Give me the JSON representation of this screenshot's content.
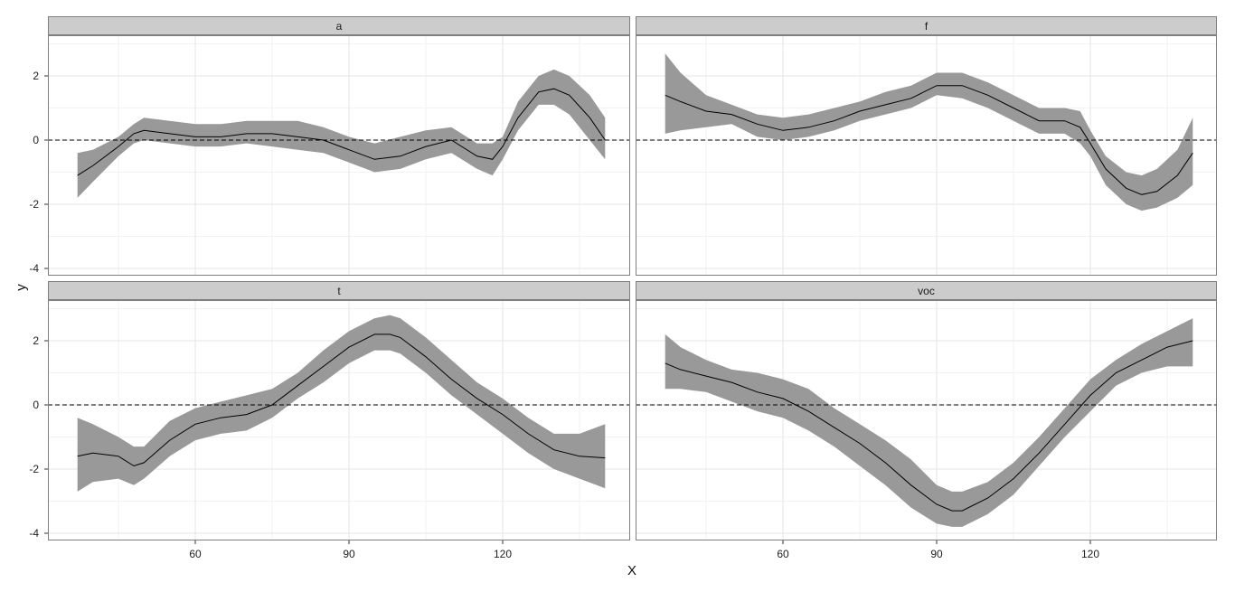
{
  "chart_data": {
    "type": "line",
    "layout": "facet-grid-2x2",
    "xlabel": "X",
    "ylabel": "y",
    "xticks": [
      60,
      90,
      120
    ],
    "yticks": [
      -4,
      -2,
      0,
      2
    ],
    "xlim": [
      32,
      142
    ],
    "ylim": [
      -4.2,
      3.1
    ],
    "reference_line": {
      "y": 0,
      "style": "dashed"
    },
    "grid": true,
    "colors": {
      "panel_bg": "#ffffff",
      "strip_bg": "#cccccc",
      "ribbon": "#999999",
      "line": "#000000",
      "grid_major": "#e5e5e5",
      "grid_minor": "#f2f2f2"
    },
    "facets": [
      {
        "label": "a",
        "x": [
          37,
          40,
          45,
          48,
          50,
          55,
          60,
          65,
          70,
          75,
          80,
          85,
          90,
          95,
          100,
          105,
          110,
          115,
          118,
          120,
          123,
          127,
          130,
          133,
          137,
          140
        ],
        "y": [
          -1.1,
          -0.8,
          -0.2,
          0.2,
          0.3,
          0.2,
          0.1,
          0.1,
          0.2,
          0.2,
          0.1,
          0.0,
          -0.3,
          -0.6,
          -0.5,
          -0.2,
          0.0,
          -0.5,
          -0.6,
          -0.2,
          0.7,
          1.5,
          1.6,
          1.4,
          0.7,
          0.0
        ],
        "lower": [
          -1.8,
          -1.3,
          -0.5,
          -0.1,
          0.0,
          -0.1,
          -0.2,
          -0.2,
          -0.1,
          -0.2,
          -0.3,
          -0.4,
          -0.7,
          -1.0,
          -0.9,
          -0.6,
          -0.4,
          -0.9,
          -1.1,
          -0.6,
          0.3,
          1.1,
          1.1,
          0.8,
          0.0,
          -0.6
        ],
        "upper": [
          -0.4,
          -0.3,
          0.1,
          0.5,
          0.7,
          0.6,
          0.5,
          0.5,
          0.6,
          0.6,
          0.6,
          0.4,
          0.1,
          -0.1,
          0.1,
          0.3,
          0.4,
          -0.1,
          -0.1,
          0.1,
          1.2,
          2.0,
          2.2,
          2.0,
          1.4,
          0.7
        ]
      },
      {
        "label": "f",
        "x": [
          37,
          40,
          45,
          50,
          55,
          60,
          65,
          70,
          75,
          80,
          85,
          90,
          95,
          100,
          105,
          110,
          115,
          118,
          120,
          123,
          127,
          130,
          133,
          137,
          140
        ],
        "y": [
          1.4,
          1.2,
          0.9,
          0.8,
          0.5,
          0.3,
          0.4,
          0.6,
          0.9,
          1.1,
          1.3,
          1.7,
          1.7,
          1.4,
          1.0,
          0.6,
          0.6,
          0.4,
          -0.1,
          -0.9,
          -1.5,
          -1.7,
          -1.6,
          -1.1,
          -0.4
        ],
        "lower": [
          0.2,
          0.3,
          0.4,
          0.5,
          0.1,
          0.0,
          0.1,
          0.3,
          0.6,
          0.8,
          1.0,
          1.4,
          1.3,
          1.0,
          0.6,
          0.2,
          0.2,
          -0.1,
          -0.5,
          -1.4,
          -2.0,
          -2.2,
          -2.1,
          -1.8,
          -1.4
        ],
        "upper": [
          2.7,
          2.1,
          1.4,
          1.1,
          0.8,
          0.7,
          0.8,
          1.0,
          1.2,
          1.5,
          1.7,
          2.1,
          2.1,
          1.8,
          1.4,
          1.0,
          1.0,
          0.9,
          0.3,
          -0.5,
          -1.0,
          -1.1,
          -0.9,
          -0.3,
          0.7
        ]
      },
      {
        "label": "t",
        "x": [
          37,
          40,
          45,
          48,
          50,
          55,
          60,
          65,
          70,
          75,
          80,
          85,
          90,
          95,
          98,
          100,
          105,
          110,
          115,
          120,
          125,
          130,
          135,
          140
        ],
        "y": [
          -1.6,
          -1.5,
          -1.6,
          -1.9,
          -1.8,
          -1.1,
          -0.6,
          -0.4,
          -0.3,
          0.0,
          0.6,
          1.2,
          1.8,
          2.2,
          2.2,
          2.1,
          1.5,
          0.8,
          0.2,
          -0.3,
          -0.9,
          -1.4,
          -1.6,
          -1.65
        ],
        "lower": [
          -2.7,
          -2.4,
          -2.3,
          -2.5,
          -2.3,
          -1.6,
          -1.1,
          -0.9,
          -0.8,
          -0.4,
          0.2,
          0.7,
          1.3,
          1.7,
          1.7,
          1.6,
          1.0,
          0.3,
          -0.3,
          -0.9,
          -1.5,
          -2.0,
          -2.3,
          -2.6
        ],
        "upper": [
          -0.4,
          -0.6,
          -1.0,
          -1.3,
          -1.3,
          -0.5,
          -0.1,
          0.1,
          0.3,
          0.5,
          1.0,
          1.7,
          2.3,
          2.7,
          2.8,
          2.7,
          2.1,
          1.4,
          0.7,
          0.2,
          -0.4,
          -0.9,
          -0.9,
          -0.6
        ]
      },
      {
        "label": "voc",
        "x": [
          37,
          40,
          45,
          50,
          55,
          60,
          65,
          70,
          75,
          80,
          85,
          90,
          93,
          95,
          100,
          105,
          110,
          115,
          120,
          125,
          130,
          135,
          140
        ],
        "y": [
          1.3,
          1.1,
          0.9,
          0.7,
          0.4,
          0.2,
          -0.2,
          -0.7,
          -1.2,
          -1.8,
          -2.5,
          -3.1,
          -3.3,
          -3.3,
          -2.9,
          -2.3,
          -1.5,
          -0.6,
          0.3,
          1.0,
          1.4,
          1.8,
          2.0
        ],
        "lower": [
          0.5,
          0.5,
          0.4,
          0.1,
          -0.2,
          -0.4,
          -0.8,
          -1.3,
          -1.9,
          -2.5,
          -3.2,
          -3.7,
          -3.8,
          -3.8,
          -3.4,
          -2.8,
          -1.9,
          -1.0,
          -0.2,
          0.6,
          1.0,
          1.2,
          1.2
        ],
        "upper": [
          2.2,
          1.8,
          1.4,
          1.1,
          1.0,
          0.8,
          0.5,
          -0.1,
          -0.6,
          -1.1,
          -1.7,
          -2.5,
          -2.7,
          -2.7,
          -2.4,
          -1.8,
          -1.0,
          -0.1,
          0.8,
          1.4,
          1.9,
          2.3,
          2.7
        ]
      }
    ]
  }
}
